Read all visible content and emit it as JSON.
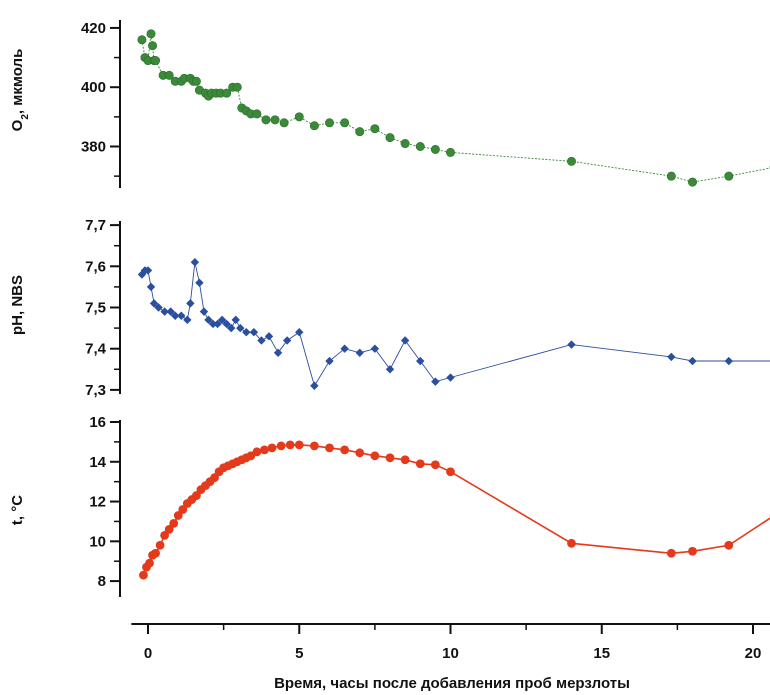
{
  "chart_data": [
    {
      "type": "line",
      "ylabel": "O₂, мкмоль",
      "ylabel_main": "O",
      "ylabel_sub": "2",
      "ylabel_rest": ", мкмоль",
      "ylim": [
        366,
        422
      ],
      "yticks": [
        380,
        400,
        420
      ],
      "ytick_labels": [
        "380",
        "400",
        "420"
      ],
      "color": "#3a8a3a",
      "series": [
        {
          "x": [
            -0.2,
            -0.1,
            0.0,
            0.1,
            0.15,
            0.2,
            0.25,
            0.5,
            0.7,
            0.9,
            1.1,
            1.2,
            1.4,
            1.5,
            1.6,
            1.7,
            1.9,
            2.0,
            2.1,
            2.25,
            2.4,
            2.6,
            2.8,
            2.95,
            3.1,
            3.25,
            3.4,
            3.6,
            3.9,
            4.2,
            4.5,
            5.0,
            5.5,
            6.0,
            6.5,
            7.0,
            7.5,
            8.0,
            8.5,
            9.0,
            9.5,
            10.0,
            14.0,
            17.3,
            18.0,
            19.2,
            20.7
          ],
          "y": [
            416,
            410,
            409,
            418,
            414,
            409,
            409,
            404,
            404,
            402,
            402,
            403,
            403,
            402,
            402,
            399,
            398,
            397,
            398,
            398,
            398,
            398,
            400,
            400,
            393,
            392,
            391,
            391,
            389,
            389,
            388,
            390,
            387,
            388,
            388,
            385,
            386,
            383,
            381,
            380,
            379,
            378,
            375,
            370,
            368,
            370,
            373
          ]
        }
      ]
    },
    {
      "type": "line",
      "ylabel": "pH, NBS",
      "ylim": [
        7.29,
        7.71
      ],
      "yticks": [
        7.3,
        7.4,
        7.5,
        7.6,
        7.7
      ],
      "ytick_labels": [
        "7,3",
        "7,4",
        "7,5",
        "7,6",
        "7,7"
      ],
      "color": "#2a4ea0",
      "series": [
        {
          "x": [
            -0.2,
            -0.1,
            0.0,
            0.1,
            0.2,
            0.35,
            0.55,
            0.75,
            0.9,
            1.1,
            1.3,
            1.4,
            1.55,
            1.7,
            1.85,
            2.0,
            2.15,
            2.3,
            2.45,
            2.6,
            2.75,
            2.9,
            3.05,
            3.25,
            3.5,
            3.75,
            4.0,
            4.3,
            4.6,
            5.0,
            5.5,
            6.0,
            6.5,
            7.0,
            7.5,
            8.0,
            8.5,
            9.0,
            9.5,
            10.0,
            14.0,
            17.3,
            18.0,
            19.2,
            20.7
          ],
          "y": [
            7.58,
            7.59,
            7.59,
            7.55,
            7.51,
            7.5,
            7.49,
            7.49,
            7.48,
            7.48,
            7.47,
            7.51,
            7.61,
            7.56,
            7.49,
            7.47,
            7.46,
            7.46,
            7.47,
            7.46,
            7.45,
            7.47,
            7.45,
            7.44,
            7.44,
            7.42,
            7.43,
            7.39,
            7.42,
            7.44,
            7.31,
            7.37,
            7.4,
            7.39,
            7.4,
            7.35,
            7.42,
            7.37,
            7.32,
            7.33,
            7.41,
            7.38,
            7.37,
            7.37,
            7.37
          ]
        }
      ]
    },
    {
      "type": "line",
      "ylabel": "t, °C",
      "xlabel": "Время, часы после добавления проб мерзлоты",
      "ylim": [
        7.2,
        16.0
      ],
      "yticks": [
        8,
        10,
        12,
        14,
        16
      ],
      "ytick_labels": [
        "8",
        "10",
        "12",
        "14",
        "16"
      ],
      "xlim": [
        -0.55,
        20.7
      ],
      "xticks": [
        0,
        5,
        10,
        15,
        20
      ],
      "xtick_labels": [
        "0",
        "5",
        "10",
        "15",
        "20"
      ],
      "color": "#e5391c",
      "series": [
        {
          "x": [
            -0.15,
            -0.05,
            0.05,
            0.15,
            0.25,
            0.4,
            0.55,
            0.7,
            0.85,
            1.0,
            1.15,
            1.3,
            1.45,
            1.6,
            1.75,
            1.9,
            2.05,
            2.2,
            2.35,
            2.5,
            2.65,
            2.8,
            2.95,
            3.1,
            3.25,
            3.4,
            3.6,
            3.85,
            4.1,
            4.4,
            4.7,
            5.0,
            5.5,
            6.0,
            6.5,
            7.0,
            7.5,
            8.0,
            8.5,
            9.0,
            9.5,
            10.0,
            14.0,
            17.3,
            18.0,
            19.2,
            20.7
          ],
          "y": [
            8.3,
            8.7,
            8.9,
            9.3,
            9.4,
            9.8,
            10.3,
            10.6,
            10.9,
            11.3,
            11.6,
            11.9,
            12.1,
            12.3,
            12.6,
            12.8,
            13.0,
            13.2,
            13.5,
            13.7,
            13.8,
            13.9,
            14.0,
            14.1,
            14.2,
            14.3,
            14.5,
            14.6,
            14.7,
            14.8,
            14.85,
            14.85,
            14.8,
            14.7,
            14.6,
            14.45,
            14.3,
            14.2,
            14.1,
            13.9,
            13.85,
            13.5,
            9.9,
            9.4,
            9.5,
            9.8,
            11.3
          ]
        }
      ]
    }
  ]
}
